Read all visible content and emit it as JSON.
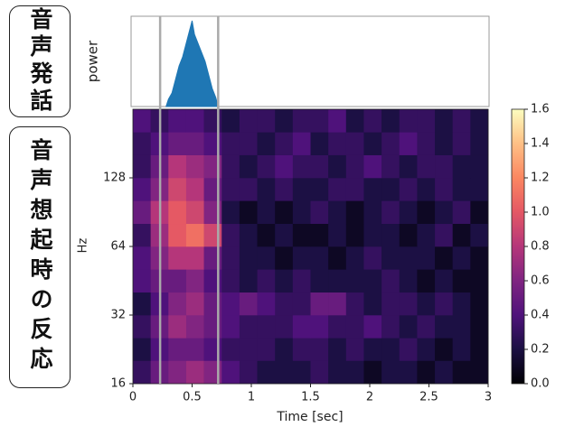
{
  "labels": [
    "音声発話",
    "音声想起時の反応"
  ],
  "chart_data": {
    "type": "heatmap",
    "xlabel": "Time [sec]",
    "ylabel": "Hz",
    "xlim": [
      0,
      3
    ],
    "xticks": [
      0,
      0.5,
      1,
      1.5,
      2,
      2.5,
      3
    ],
    "ylim": [
      16,
      256
    ],
    "yscale": "log",
    "yticks": [
      16,
      32,
      64,
      128
    ],
    "colormap": "magma",
    "clim": [
      0,
      1.6
    ],
    "cticks": [
      {
        "value": 0,
        "label": "0.0"
      },
      0.2,
      0.4,
      0.6,
      0.8,
      {
        "value": 1,
        "label": "1.0"
      },
      1.2,
      1.4,
      1.6
    ],
    "vlines": [
      0.23,
      0.72
    ],
    "heatmap": {
      "time_edges": [
        0,
        0.15,
        0.3,
        0.45,
        0.6,
        0.75,
        0.9,
        1.05,
        1.2,
        1.35,
        1.5,
        1.65,
        1.8,
        1.95,
        2.1,
        2.25,
        2.4,
        2.55,
        2.7,
        2.85,
        3
      ],
      "freq_edges": [
        16,
        20.2,
        25.4,
        32,
        40.3,
        50.8,
        64,
        80.6,
        101.6,
        128,
        161.3,
        203.2,
        256
      ],
      "z": [
        [
          0.3,
          0.5,
          0.6,
          0.7,
          0.6,
          0.4,
          0.3,
          0.2,
          0.2,
          0.2,
          0.3,
          0.2,
          0.2,
          0.1,
          0.2,
          0.2,
          0.1,
          0.2,
          0.1,
          0.1
        ],
        [
          0.2,
          0.4,
          0.5,
          0.5,
          0.4,
          0.3,
          0.3,
          0.3,
          0.2,
          0.3,
          0.3,
          0.2,
          0.3,
          0.2,
          0.2,
          0.3,
          0.2,
          0.1,
          0.2,
          0.1
        ],
        [
          0.3,
          0.5,
          0.7,
          0.6,
          0.5,
          0.4,
          0.3,
          0.3,
          0.3,
          0.4,
          0.4,
          0.3,
          0.3,
          0.4,
          0.3,
          0.2,
          0.3,
          0.2,
          0.2,
          0.1
        ],
        [
          0.2,
          0.4,
          0.6,
          0.7,
          0.5,
          0.4,
          0.5,
          0.4,
          0.3,
          0.3,
          0.5,
          0.5,
          0.3,
          0.2,
          0.3,
          0.3,
          0.2,
          0.3,
          0.2,
          0.1
        ],
        [
          0.4,
          0.5,
          0.5,
          0.6,
          0.4,
          0.3,
          0.2,
          0.3,
          0.2,
          0.3,
          0.2,
          0.2,
          0.2,
          0.2,
          0.3,
          0.2,
          0.1,
          0.2,
          0.1,
          0.1
        ],
        [
          0.4,
          0.6,
          0.8,
          0.8,
          0.5,
          0.3,
          0.2,
          0.2,
          0.1,
          0.2,
          0.2,
          0.1,
          0.2,
          0.3,
          0.2,
          0.2,
          0.2,
          0.1,
          0.2,
          0.1
        ],
        [
          0.3,
          0.7,
          1.0,
          1.1,
          0.9,
          0.3,
          0.2,
          0.1,
          0.2,
          0.1,
          0.1,
          0.2,
          0.1,
          0.2,
          0.2,
          0.1,
          0.2,
          0.3,
          0.1,
          0.2
        ],
        [
          0.5,
          0.8,
          1.0,
          0.9,
          0.6,
          0.2,
          0.1,
          0.2,
          0.1,
          0.2,
          0.3,
          0.2,
          0.1,
          0.2,
          0.3,
          0.2,
          0.1,
          0.2,
          0.3,
          0.1
        ],
        [
          0.4,
          0.6,
          0.9,
          0.8,
          0.5,
          0.3,
          0.3,
          0.2,
          0.3,
          0.2,
          0.2,
          0.3,
          0.3,
          0.2,
          0.2,
          0.3,
          0.2,
          0.3,
          0.2,
          0.2
        ],
        [
          0.3,
          0.5,
          0.8,
          0.7,
          0.6,
          0.3,
          0.2,
          0.3,
          0.4,
          0.3,
          0.3,
          0.2,
          0.3,
          0.4,
          0.3,
          0.2,
          0.3,
          0.3,
          0.2,
          0.2
        ],
        [
          0.3,
          0.4,
          0.5,
          0.5,
          0.4,
          0.3,
          0.3,
          0.2,
          0.3,
          0.4,
          0.2,
          0.3,
          0.3,
          0.2,
          0.3,
          0.4,
          0.3,
          0.2,
          0.3,
          0.2
        ],
        [
          0.4,
          0.3,
          0.4,
          0.4,
          0.3,
          0.2,
          0.3,
          0.3,
          0.2,
          0.3,
          0.3,
          0.4,
          0.2,
          0.3,
          0.2,
          0.3,
          0.3,
          0.2,
          0.3,
          0.2
        ]
      ]
    },
    "power": {
      "ylabel": "power",
      "color": "#1f77b4",
      "ylim": [
        0,
        1
      ],
      "x": [
        0.28,
        0.3,
        0.33,
        0.36,
        0.39,
        0.42,
        0.45,
        0.48,
        0.5,
        0.52,
        0.55,
        0.58,
        0.61,
        0.64,
        0.67,
        0.7,
        0.72
      ],
      "values": [
        0,
        0.08,
        0.15,
        0.3,
        0.45,
        0.55,
        0.7,
        0.85,
        0.95,
        0.8,
        0.7,
        0.6,
        0.5,
        0.35,
        0.2,
        0.1,
        0
      ]
    }
  }
}
